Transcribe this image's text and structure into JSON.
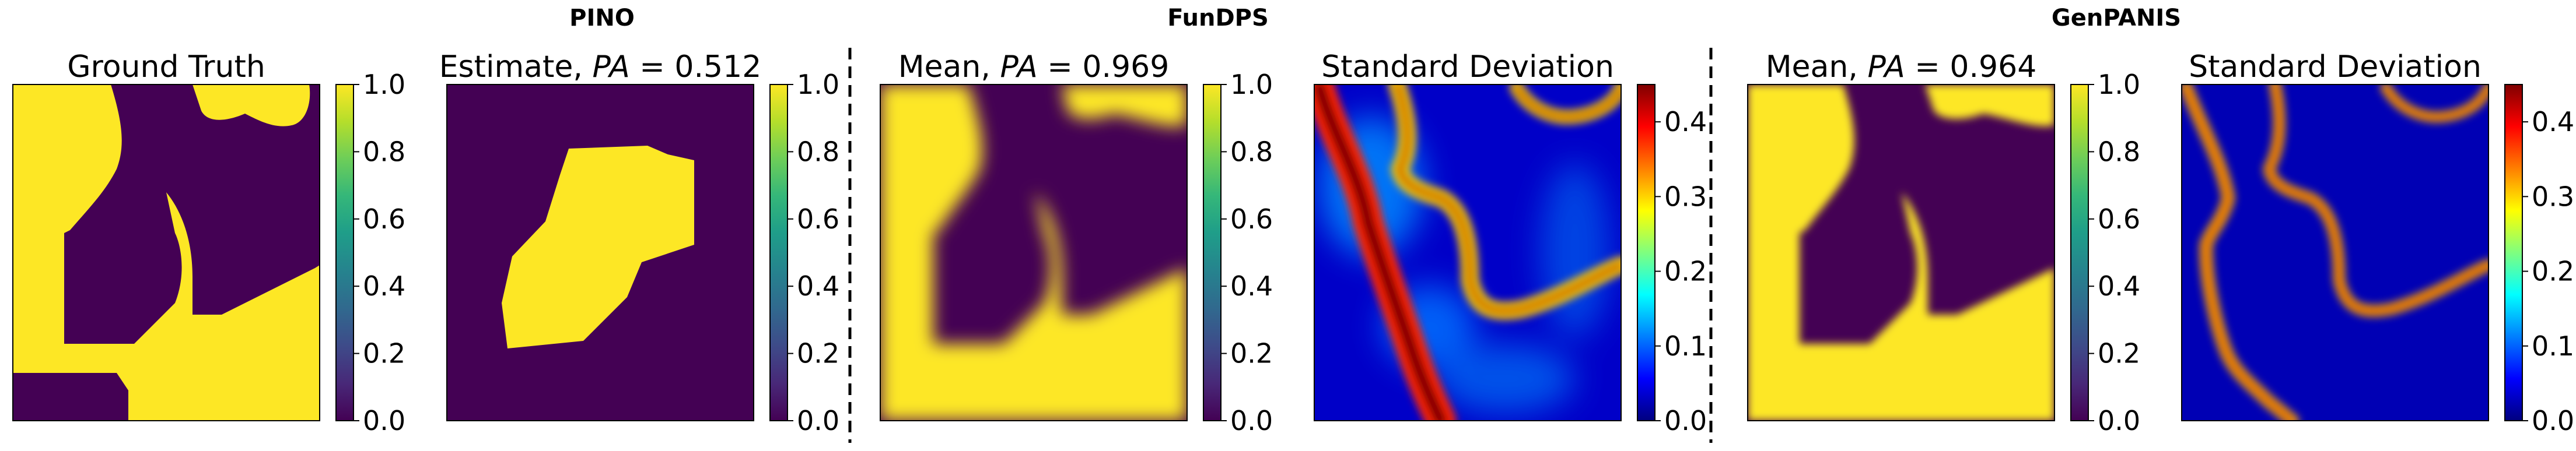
{
  "figure": {
    "groups": [
      {
        "id": "pino",
        "label": "PINO"
      },
      {
        "id": "fundps",
        "label": "FunDPS"
      },
      {
        "id": "genpanis",
        "label": "GenPANIS"
      }
    ]
  },
  "colormaps": {
    "viridis": [
      "#440154",
      "#482878",
      "#3e4a89",
      "#31688e",
      "#26828e",
      "#1f9e89",
      "#35b779",
      "#6ece58",
      "#b5de2b",
      "#fde725"
    ],
    "jet": [
      "#00007f",
      "#0000ff",
      "#007fff",
      "#00ffff",
      "#7fff7f",
      "#ffff00",
      "#ff7f00",
      "#ff0000",
      "#7f0000"
    ]
  },
  "chart_data": [
    {
      "type": "heatmap",
      "group": "",
      "title": "Ground Truth",
      "colormap": "viridis",
      "clim": [
        0.0,
        1.0
      ],
      "colorbar_ticks": [
        "0.0",
        "0.2",
        "0.4",
        "0.6",
        "0.8",
        "1.0"
      ]
    },
    {
      "type": "heatmap",
      "group": "PINO",
      "title": "Estimate, PA = 0.512",
      "title_prefix": "Estimate, ",
      "pa_symbol": "PA",
      "pa_value": "0.512",
      "colormap": "viridis",
      "clim": [
        0.0,
        1.0
      ],
      "colorbar_ticks": [
        "0.0",
        "0.2",
        "0.4",
        "0.6",
        "0.8",
        "1.0"
      ]
    },
    {
      "type": "heatmap",
      "group": "FunDPS",
      "title": "Mean, PA = 0.969",
      "title_prefix": "Mean, ",
      "pa_symbol": "PA",
      "pa_value": "0.969",
      "colormap": "viridis",
      "clim": [
        0.0,
        1.0
      ],
      "colorbar_ticks": [
        "0.0",
        "0.2",
        "0.4",
        "0.6",
        "0.8",
        "1.0"
      ]
    },
    {
      "type": "heatmap",
      "group": "FunDPS",
      "title": "Standard Deviation",
      "colormap": "jet",
      "clim": [
        0.0,
        0.45
      ],
      "colorbar_ticks": [
        "0.0",
        "0.1",
        "0.2",
        "0.3",
        "0.4"
      ]
    },
    {
      "type": "heatmap",
      "group": "GenPANIS",
      "title": "Mean, PA = 0.964",
      "title_prefix": "Mean, ",
      "pa_symbol": "PA",
      "pa_value": "0.964",
      "colormap": "viridis",
      "clim": [
        0.0,
        1.0
      ],
      "colorbar_ticks": [
        "0.0",
        "0.2",
        "0.4",
        "0.6",
        "0.8",
        "1.0"
      ]
    },
    {
      "type": "heatmap",
      "group": "GenPANIS",
      "title": "Standard Deviation",
      "colormap": "jet",
      "clim": [
        0.0,
        0.45
      ],
      "colorbar_ticks": [
        "0.0",
        "0.1",
        "0.2",
        "0.3",
        "0.4"
      ]
    }
  ]
}
